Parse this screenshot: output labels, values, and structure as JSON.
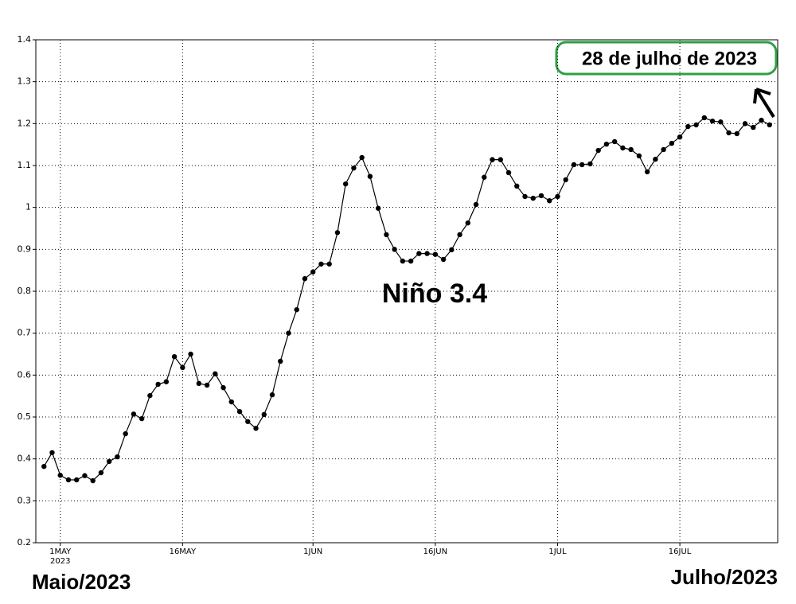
{
  "chart_data": {
    "type": "line",
    "annotation": "Niño 3.4",
    "date_note": "28 de julho de 2023",
    "left_label": "Maio/2023",
    "right_label": "Julho/2023",
    "x_year": "2023",
    "grid": true,
    "xlim": [
      "2023-04-28",
      "2023-07-28"
    ],
    "xticks": [
      {
        "value": "2023-05-01",
        "label": "1MAY"
      },
      {
        "value": "2023-05-16",
        "label": "16MAY"
      },
      {
        "value": "2023-06-01",
        "label": "1JUN"
      },
      {
        "value": "2023-06-16",
        "label": "16JUN"
      },
      {
        "value": "2023-07-01",
        "label": "1JUL"
      },
      {
        "value": "2023-07-16",
        "label": "16JUL"
      }
    ],
    "ylim": [
      0.2,
      1.4
    ],
    "yticks": [
      0.2,
      0.3,
      0.4,
      0.5,
      0.6,
      0.7,
      0.8,
      0.9,
      1,
      1.1,
      1.2,
      1.3,
      1.4
    ],
    "x": [
      "2023-04-29",
      "2023-04-30",
      "2023-05-01",
      "2023-05-02",
      "2023-05-03",
      "2023-05-04",
      "2023-05-05",
      "2023-05-06",
      "2023-05-07",
      "2023-05-08",
      "2023-05-09",
      "2023-05-10",
      "2023-05-11",
      "2023-05-12",
      "2023-05-13",
      "2023-05-14",
      "2023-05-15",
      "2023-05-16",
      "2023-05-17",
      "2023-05-18",
      "2023-05-19",
      "2023-05-20",
      "2023-05-21",
      "2023-05-22",
      "2023-05-23",
      "2023-05-24",
      "2023-05-25",
      "2023-05-26",
      "2023-05-27",
      "2023-05-28",
      "2023-05-29",
      "2023-05-30",
      "2023-05-31",
      "2023-06-01",
      "2023-06-02",
      "2023-06-03",
      "2023-06-04",
      "2023-06-05",
      "2023-06-06",
      "2023-06-07",
      "2023-06-08",
      "2023-06-09",
      "2023-06-10",
      "2023-06-11",
      "2023-06-12",
      "2023-06-13",
      "2023-06-14",
      "2023-06-15",
      "2023-06-16",
      "2023-06-17",
      "2023-06-18",
      "2023-06-19",
      "2023-06-20",
      "2023-06-21",
      "2023-06-22",
      "2023-06-23",
      "2023-06-24",
      "2023-06-25",
      "2023-06-26",
      "2023-06-27",
      "2023-06-28",
      "2023-06-29",
      "2023-06-30",
      "2023-07-01",
      "2023-07-02",
      "2023-07-03",
      "2023-07-04",
      "2023-07-05",
      "2023-07-06",
      "2023-07-07",
      "2023-07-08",
      "2023-07-09",
      "2023-07-10",
      "2023-07-11",
      "2023-07-12",
      "2023-07-13",
      "2023-07-14",
      "2023-07-15",
      "2023-07-16",
      "2023-07-17",
      "2023-07-18",
      "2023-07-19",
      "2023-07-20",
      "2023-07-21",
      "2023-07-22",
      "2023-07-23",
      "2023-07-24",
      "2023-07-25",
      "2023-07-26",
      "2023-07-27"
    ],
    "color": "#000000",
    "values": [
      0.382,
      0.415,
      0.361,
      0.35,
      0.35,
      0.36,
      0.348,
      0.367,
      0.394,
      0.405,
      0.46,
      0.507,
      0.496,
      0.551,
      0.578,
      0.584,
      0.644,
      0.618,
      0.65,
      0.58,
      0.576,
      0.603,
      0.57,
      0.536,
      0.513,
      0.489,
      0.473,
      0.506,
      0.553,
      0.633,
      0.7,
      0.756,
      0.83,
      0.846,
      0.865,
      0.865,
      0.94,
      1.056,
      1.094,
      1.119,
      1.074,
      0.998,
      0.935,
      0.9,
      0.872,
      0.872,
      0.89,
      0.89,
      0.888,
      0.876,
      0.899,
      0.935,
      0.963,
      1.007,
      1.072,
      1.114,
      1.114,
      1.083,
      1.051,
      1.026,
      1.022,
      1.028,
      1.016,
      1.026,
      1.066,
      1.102,
      1.102,
      1.104,
      1.136,
      1.151,
      1.157,
      1.142,
      1.138,
      1.123,
      1.085,
      1.115,
      1.138,
      1.153,
      1.168,
      1.193,
      1.197,
      1.214,
      1.206,
      1.204,
      1.178,
      1.176,
      1.2,
      1.191,
      1.208,
      1.197
    ]
  }
}
